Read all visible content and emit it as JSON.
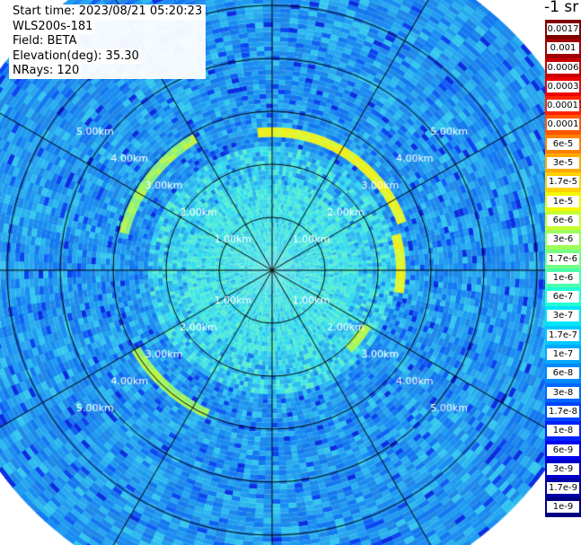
{
  "info": {
    "start_time": "Start time: 2023/08/21 05:20:23",
    "site": "WLS200s-181",
    "field": "Field: BETA",
    "elevation": "Elevation(deg): 35.30",
    "nrays": "NRays: 120"
  },
  "units": "-1 sr",
  "colorbar": {
    "labels": [
      "0.0017",
      "0.001",
      "0.0006",
      "0.0003",
      "0.00017",
      "0.0001",
      "6e-5",
      "3e-5",
      "1.7e-5",
      "1e-5",
      "6e-6",
      "3e-6",
      "1.7e-6",
      "1e-6",
      "6e-7",
      "3e-7",
      "1.7e-7",
      "1e-7",
      "6e-8",
      "3e-8",
      "1.7e-8",
      "1e-8",
      "6e-9",
      "3e-9",
      "1.7e-9",
      "1e-9"
    ],
    "colors": [
      "#7f0000",
      "#a00000",
      "#c80000",
      "#ee0000",
      "#ff2200",
      "#ff5500",
      "#ff8000",
      "#ffaa00",
      "#ffd200",
      "#f4f800",
      "#c8ff2e",
      "#9cff5a",
      "#74ff82",
      "#4affac",
      "#22ffd6",
      "#00e4f8",
      "#00c8ff",
      "#00a8ff",
      "#0088ff",
      "#0066ff",
      "#0044ff",
      "#0022ff",
      "#0000f2",
      "#0000cc",
      "#0000a4",
      "#000080"
    ]
  },
  "chart_data": {
    "type": "heatmap",
    "projection": "polar PPI",
    "title": "",
    "range_rings_km": [
      1,
      2,
      3,
      4,
      5
    ],
    "ring_labels": [
      "1.00km",
      "2.00km",
      "3.00km",
      "4.00km",
      "5.00km"
    ],
    "spoke_angles_deg": [
      0,
      30,
      60,
      90,
      120,
      150,
      180,
      210,
      240,
      270,
      300,
      330
    ],
    "max_range_km": 6.3,
    "color_scale": "log",
    "value_range": [
      1e-09,
      0.0017
    ],
    "features": [
      {
        "name": "enhanced backscatter arc",
        "range_km": 2.6,
        "azimuth_deg": [
          355,
          70
        ],
        "level": 1.7e-05
      },
      {
        "name": "enhanced backscatter arc",
        "range_km": 2.4,
        "azimuth_deg": [
          75,
          100
        ],
        "level": 1e-05
      },
      {
        "name": "enhanced backscatter arc",
        "range_km": 2.1,
        "azimuth_deg": [
          120,
          135
        ],
        "level": 3e-06
      },
      {
        "name": "enhanced backscatter arc",
        "range_km": 3.0,
        "azimuth_deg": [
          205,
          240
        ],
        "level": 1e-06
      },
      {
        "name": "enhanced backscatter arc",
        "range_km": 2.9,
        "azimuth_deg": [
          285,
          330
        ],
        "level": 1e-06
      }
    ]
  }
}
